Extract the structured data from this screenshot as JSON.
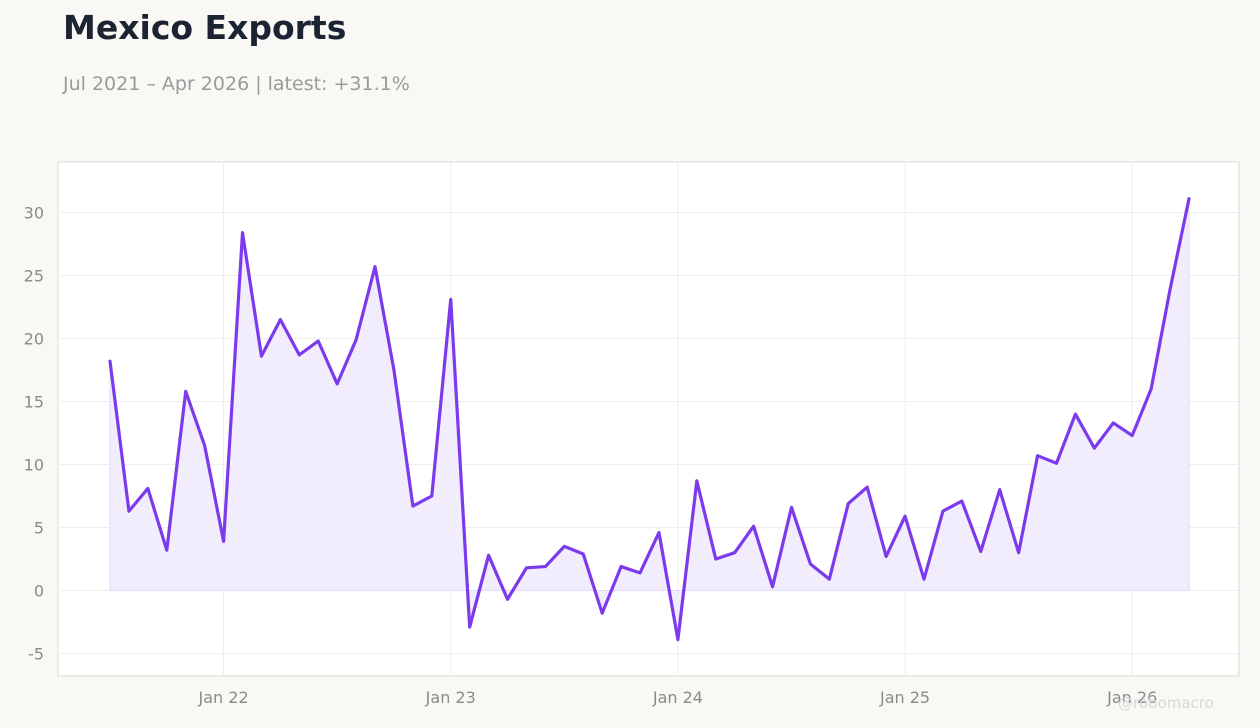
{
  "header": {
    "title": "Mexico Exports",
    "subtitle": "Jul 2021 – Apr 2026 | latest: +31.1%"
  },
  "watermark": "@robomacro",
  "colors": {
    "line": "#7c3aed",
    "fill": "#f1edfc",
    "grid": "#eeeeee",
    "frame": "#dddad3",
    "tick_text": "#8a8a8a"
  },
  "chart_data": {
    "type": "area",
    "x_start": "2021-07",
    "frequency": "monthly",
    "x_ticks": [
      "Jan 22",
      "Jan 23",
      "Jan 24",
      "Jan 25",
      "Jan 26"
    ],
    "x_tick_dates": [
      "2022-01",
      "2023-01",
      "2024-01",
      "2025-01",
      "2026-01"
    ],
    "y_ticks": [
      -5,
      0,
      5,
      10,
      15,
      20,
      25,
      30
    ],
    "ylim": [
      -7,
      34
    ],
    "grid": true,
    "legend": "none",
    "series": [
      {
        "values": [
          18.2,
          6.3,
          8.1,
          3.2,
          15.8,
          11.5,
          3.9,
          28.4,
          18.6,
          21.5,
          18.7,
          19.8,
          16.4,
          19.9,
          25.7,
          17.5,
          6.7,
          7.5,
          23.1,
          -2.9,
          2.8,
          -0.7,
          1.8,
          1.9,
          3.5,
          2.9,
          -1.8,
          1.9,
          1.4,
          4.6,
          -3.9,
          8.7,
          2.5,
          3.0,
          5.1,
          0.3,
          6.6,
          2.1,
          0.9,
          6.9,
          8.2,
          2.7,
          5.9,
          0.9,
          6.3,
          7.1,
          3.1,
          8.0,
          3.0,
          10.7,
          10.1,
          14.0,
          11.3,
          13.3,
          12.3,
          16.0,
          23.9,
          31.1
        ]
      }
    ]
  }
}
